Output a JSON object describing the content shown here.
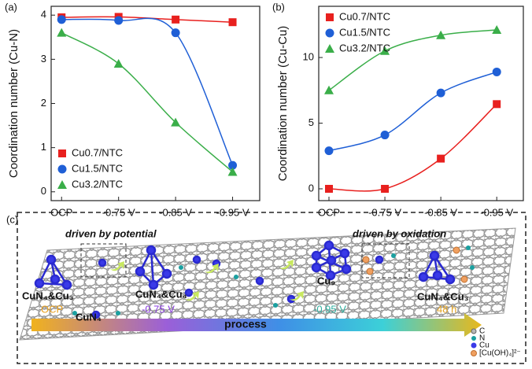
{
  "chart_data": [
    {
      "type": "line",
      "panel_label": "(a)",
      "y_label": "Coordination number (Cu-N)",
      "categories": [
        "OCP",
        "-0.75 V",
        "-0.85 V",
        "-0.95 V"
      ],
      "ylim": [
        -0.2,
        4.2
      ],
      "yticks": [
        0,
        1,
        2,
        3,
        4
      ],
      "legend": "lower left",
      "series": [
        {
          "name": "Cu0.7/NTC",
          "color": "#e8201e",
          "marker": "square",
          "values": [
            3.95,
            3.96,
            3.9,
            3.84
          ]
        },
        {
          "name": "Cu1.5/NTC",
          "color": "#1f5fd6",
          "marker": "circle",
          "values": [
            3.9,
            3.88,
            3.6,
            0.6
          ]
        },
        {
          "name": "Cu3.2/NTC",
          "color": "#3aae49",
          "marker": "triangle",
          "values": [
            3.6,
            2.9,
            1.57,
            0.45
          ]
        }
      ]
    },
    {
      "type": "line",
      "panel_label": "(b)",
      "y_label": "Coordination number (Cu-Cu)",
      "categories": [
        "OCP",
        "-0.75 V",
        "-0.85 V",
        "-0.95 V"
      ],
      "ylim": [
        -0.9,
        13.9
      ],
      "yticks": [
        0,
        5,
        10
      ],
      "legend": "upper left",
      "series": [
        {
          "name": "Cu0.7/NTC",
          "color": "#e8201e",
          "marker": "square",
          "values": [
            0,
            0,
            2.3,
            6.45
          ]
        },
        {
          "name": "Cu1.5/NTC",
          "color": "#1f5fd6",
          "marker": "circle",
          "values": [
            2.9,
            4.1,
            7.3,
            8.9
          ]
        },
        {
          "name": "Cu3.2/NTC",
          "color": "#3aae49",
          "marker": "triangle",
          "values": [
            7.5,
            10.5,
            11.7,
            12.1
          ]
        }
      ]
    }
  ],
  "diagram": {
    "panel_label": "(c)",
    "headings": [
      "driven by potential",
      "driven by oxidation"
    ],
    "structures": [
      "CuN₄&Cu₃",
      "CuN₄&Cu₄",
      "CuN₄",
      "Cu₉",
      "CuN₄&Cu₃"
    ],
    "stages": [
      "OCP",
      "-0.75 V",
      "-0.95 V",
      "48 h"
    ],
    "arrow_label": "process",
    "legend": [
      "C",
      "N",
      "Cu",
      "[Cu(OH)₄]²⁻"
    ]
  }
}
